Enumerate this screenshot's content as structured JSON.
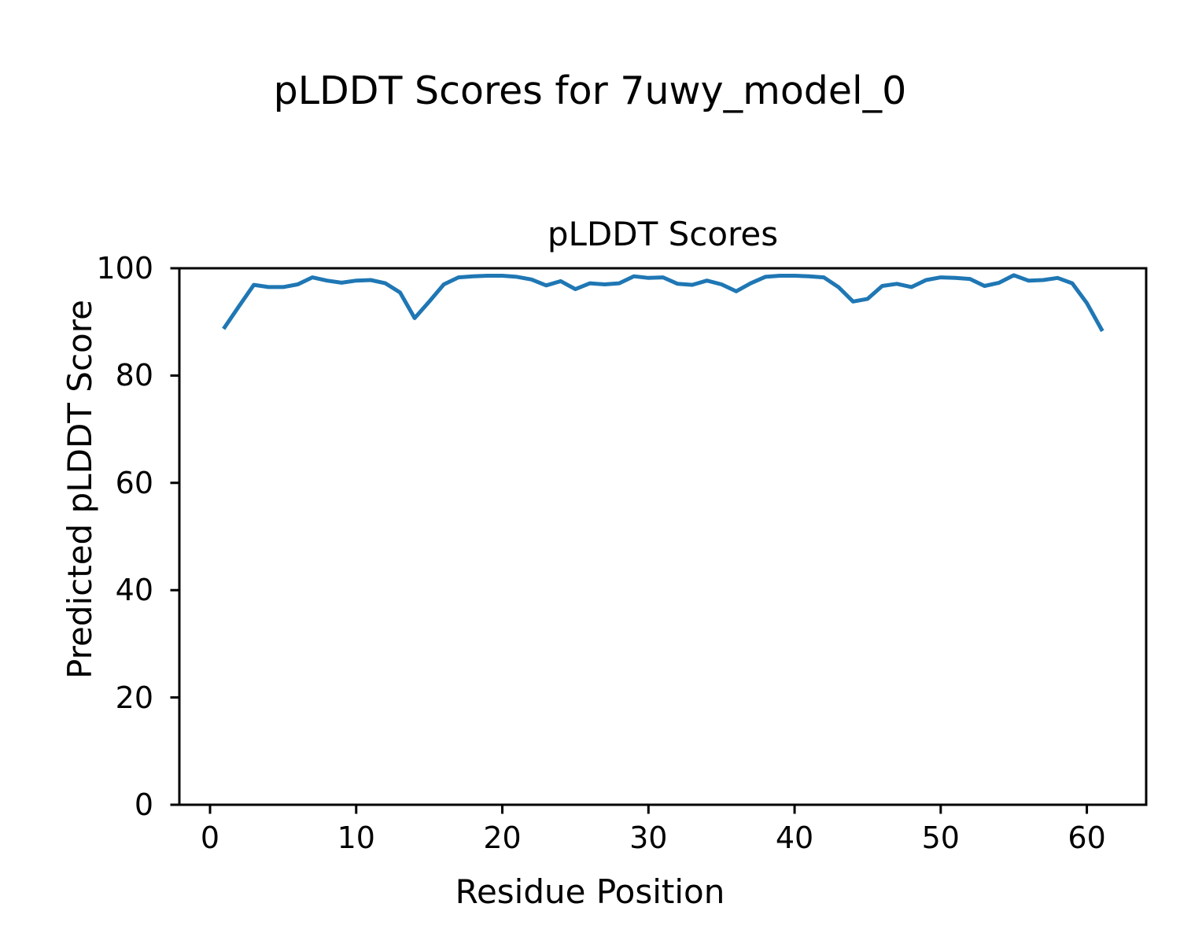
{
  "figure": {
    "title": "pLDDT Scores for 7uwy_model_0"
  },
  "chart_data": {
    "type": "line",
    "title": "pLDDT Scores",
    "xlabel": "Residue Position",
    "ylabel": "Predicted pLDDT Score",
    "xlim": [
      -2.1,
      64.06
    ],
    "ylim": [
      0,
      100
    ],
    "x_ticks": [
      0,
      10,
      20,
      30,
      40,
      50,
      60
    ],
    "y_ticks": [
      0,
      20,
      40,
      60,
      80,
      100
    ],
    "grid": false,
    "legend_position": "none",
    "line_color": "#1f77b4",
    "line_width": 5,
    "spine_color": "#000000",
    "x": [
      1,
      2,
      3,
      4,
      5,
      6,
      7,
      8,
      9,
      10,
      11,
      12,
      13,
      14,
      15,
      16,
      17,
      18,
      19,
      20,
      21,
      22,
      23,
      24,
      25,
      26,
      27,
      28,
      29,
      30,
      31,
      32,
      33,
      34,
      35,
      36,
      37,
      38,
      39,
      40,
      41,
      42,
      43,
      44,
      45,
      46,
      47,
      48,
      49,
      50,
      51,
      52,
      53,
      54,
      55,
      56,
      57,
      58,
      59,
      60,
      61
    ],
    "values": [
      89.0,
      93.0,
      96.9,
      96.5,
      96.5,
      97.0,
      98.3,
      97.7,
      97.3,
      97.7,
      97.8,
      97.2,
      95.5,
      90.7,
      93.8,
      97.0,
      98.3,
      98.5,
      98.6,
      98.6,
      98.4,
      97.9,
      96.8,
      97.6,
      96.1,
      97.2,
      97.0,
      97.2,
      98.5,
      98.2,
      98.3,
      97.1,
      96.9,
      97.7,
      97.0,
      95.7,
      97.2,
      98.4,
      98.6,
      98.6,
      98.5,
      98.3,
      96.5,
      93.8,
      94.3,
      96.7,
      97.1,
      96.5,
      97.8,
      98.3,
      98.2,
      98.0,
      96.7,
      97.3,
      98.7,
      97.7,
      97.8,
      98.2,
      97.2,
      93.5,
      88.6
    ]
  }
}
